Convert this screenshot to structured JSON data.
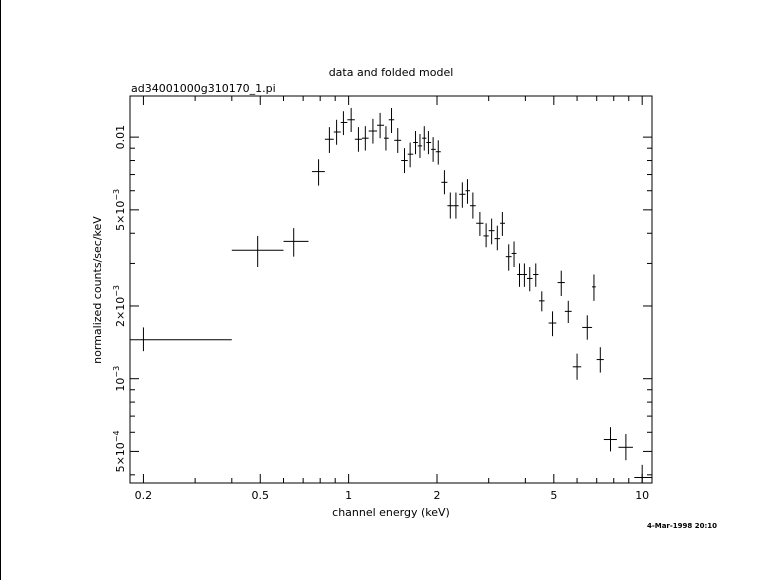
{
  "chart_data": {
    "type": "scatter",
    "title": "data and folded model",
    "subtitle": "ad34001000g310170_1.pi",
    "xlabel": "channel energy (keV)",
    "ylabel": "normalized counts/sec/keV",
    "timestamp": "4-Mar-1998 20:10",
    "xscale": "log",
    "yscale": "log",
    "xlim": [
      0.18,
      10.8
    ],
    "ylim": [
      0.00037,
      0.0148
    ],
    "grid": false,
    "legend": "none",
    "xticks": [
      {
        "value": 0.2,
        "label": "0.2"
      },
      {
        "value": 0.5,
        "label": "0.5"
      },
      {
        "value": 1,
        "label": "1"
      },
      {
        "value": 2,
        "label": "2"
      },
      {
        "value": 5,
        "label": "5"
      },
      {
        "value": 10,
        "label": "10"
      }
    ],
    "yticks": [
      {
        "value": 0.0005,
        "mantissa": "5×10",
        "exp": "−4"
      },
      {
        "value": 0.001,
        "mantissa": "10",
        "exp": "−3"
      },
      {
        "value": 0.002,
        "mantissa": "2×10",
        "exp": "−3"
      },
      {
        "value": 0.005,
        "mantissa": "5×10",
        "exp": "−3"
      },
      {
        "value": 0.01,
        "mantissa": "0.01",
        "exp": ""
      }
    ],
    "series": [
      {
        "points": [
          {
            "x": 0.2,
            "xlo": 0.18,
            "xhi": 0.4,
            "y": 0.00145,
            "ylo": 0.0013,
            "yhi": 0.00163
          },
          {
            "x": 0.49,
            "xlo": 0.4,
            "xhi": 0.6,
            "y": 0.0034,
            "ylo": 0.0029,
            "yhi": 0.0039
          },
          {
            "x": 0.65,
            "xlo": 0.6,
            "xhi": 0.73,
            "y": 0.0037,
            "ylo": 0.0032,
            "yhi": 0.0042
          },
          {
            "x": 0.79,
            "xlo": 0.75,
            "xhi": 0.83,
            "y": 0.0072,
            "ylo": 0.0063,
            "yhi": 0.0081
          },
          {
            "x": 0.86,
            "xlo": 0.83,
            "xhi": 0.89,
            "y": 0.0098,
            "ylo": 0.0086,
            "yhi": 0.011
          },
          {
            "x": 0.91,
            "xlo": 0.89,
            "xhi": 0.94,
            "y": 0.0105,
            "ylo": 0.0093,
            "yhi": 0.0118
          },
          {
            "x": 0.96,
            "xlo": 0.94,
            "xhi": 0.99,
            "y": 0.0115,
            "ylo": 0.0102,
            "yhi": 0.0128
          },
          {
            "x": 1.02,
            "xlo": 0.99,
            "xhi": 1.05,
            "y": 0.0118,
            "ylo": 0.0105,
            "yhi": 0.0132
          },
          {
            "x": 1.08,
            "xlo": 1.05,
            "xhi": 1.11,
            "y": 0.0098,
            "ylo": 0.0087,
            "yhi": 0.011
          },
          {
            "x": 1.14,
            "xlo": 1.11,
            "xhi": 1.17,
            "y": 0.0099,
            "ylo": 0.0088,
            "yhi": 0.0111
          },
          {
            "x": 1.21,
            "xlo": 1.17,
            "xhi": 1.25,
            "y": 0.0106,
            "ylo": 0.0094,
            "yhi": 0.0119
          },
          {
            "x": 1.28,
            "xlo": 1.25,
            "xhi": 1.32,
            "y": 0.0112,
            "ylo": 0.0099,
            "yhi": 0.0126
          },
          {
            "x": 1.34,
            "xlo": 1.32,
            "xhi": 1.37,
            "y": 0.0099,
            "ylo": 0.0088,
            "yhi": 0.0111
          },
          {
            "x": 1.4,
            "xlo": 1.37,
            "xhi": 1.43,
            "y": 0.0118,
            "ylo": 0.0104,
            "yhi": 0.0132
          },
          {
            "x": 1.47,
            "xlo": 1.43,
            "xhi": 1.51,
            "y": 0.0097,
            "ylo": 0.0086,
            "yhi": 0.0109
          },
          {
            "x": 1.55,
            "xlo": 1.51,
            "xhi": 1.59,
            "y": 0.008,
            "ylo": 0.0071,
            "yhi": 0.009
          },
          {
            "x": 1.62,
            "xlo": 1.59,
            "xhi": 1.66,
            "y": 0.0085,
            "ylo": 0.0075,
            "yhi": 0.0095
          },
          {
            "x": 1.69,
            "xlo": 1.66,
            "xhi": 1.72,
            "y": 0.0095,
            "ylo": 0.0085,
            "yhi": 0.0106
          },
          {
            "x": 1.75,
            "xlo": 1.72,
            "xhi": 1.78,
            "y": 0.0092,
            "ylo": 0.0082,
            "yhi": 0.0103
          },
          {
            "x": 1.81,
            "xlo": 1.78,
            "xhi": 1.84,
            "y": 0.0099,
            "ylo": 0.0088,
            "yhi": 0.0111
          },
          {
            "x": 1.87,
            "xlo": 1.84,
            "xhi": 1.91,
            "y": 0.0095,
            "ylo": 0.0085,
            "yhi": 0.0106
          },
          {
            "x": 1.94,
            "xlo": 1.91,
            "xhi": 1.98,
            "y": 0.0089,
            "ylo": 0.0079,
            "yhi": 0.01
          },
          {
            "x": 2.02,
            "xlo": 1.98,
            "xhi": 2.06,
            "y": 0.0087,
            "ylo": 0.0077,
            "yhi": 0.0097
          },
          {
            "x": 2.12,
            "xlo": 2.07,
            "xhi": 2.17,
            "y": 0.0065,
            "ylo": 0.0058,
            "yhi": 0.0073
          },
          {
            "x": 2.22,
            "xlo": 2.17,
            "xhi": 2.27,
            "y": 0.0052,
            "ylo": 0.0046,
            "yhi": 0.0059
          },
          {
            "x": 2.32,
            "xlo": 2.27,
            "xhi": 2.37,
            "y": 0.0052,
            "ylo": 0.0046,
            "yhi": 0.0059
          },
          {
            "x": 2.44,
            "xlo": 2.38,
            "xhi": 2.5,
            "y": 0.0058,
            "ylo": 0.0051,
            "yhi": 0.0065
          },
          {
            "x": 2.54,
            "xlo": 2.5,
            "xhi": 2.59,
            "y": 0.006,
            "ylo": 0.0053,
            "yhi": 0.0067
          },
          {
            "x": 2.65,
            "xlo": 2.59,
            "xhi": 2.71,
            "y": 0.0052,
            "ylo": 0.0046,
            "yhi": 0.0059
          },
          {
            "x": 2.8,
            "xlo": 2.72,
            "xhi": 2.88,
            "y": 0.0044,
            "ylo": 0.0039,
            "yhi": 0.0049
          },
          {
            "x": 2.94,
            "xlo": 2.88,
            "xhi": 3.0,
            "y": 0.0039,
            "ylo": 0.0035,
            "yhi": 0.0044
          },
          {
            "x": 3.07,
            "xlo": 3.0,
            "xhi": 3.14,
            "y": 0.0041,
            "ylo": 0.0036,
            "yhi": 0.0046
          },
          {
            "x": 3.21,
            "xlo": 3.14,
            "xhi": 3.28,
            "y": 0.0038,
            "ylo": 0.0034,
            "yhi": 0.0043
          },
          {
            "x": 3.34,
            "xlo": 3.28,
            "xhi": 3.41,
            "y": 0.0044,
            "ylo": 0.0039,
            "yhi": 0.0049
          },
          {
            "x": 3.51,
            "xlo": 3.43,
            "xhi": 3.59,
            "y": 0.0032,
            "ylo": 0.0028,
            "yhi": 0.0036
          },
          {
            "x": 3.66,
            "xlo": 3.59,
            "xhi": 3.73,
            "y": 0.0033,
            "ylo": 0.0029,
            "yhi": 0.0037
          },
          {
            "x": 3.82,
            "xlo": 3.75,
            "xhi": 3.9,
            "y": 0.0027,
            "ylo": 0.0024,
            "yhi": 0.003
          },
          {
            "x": 3.97,
            "xlo": 3.9,
            "xhi": 4.05,
            "y": 0.0027,
            "ylo": 0.0024,
            "yhi": 0.003
          },
          {
            "x": 4.14,
            "xlo": 4.05,
            "xhi": 4.23,
            "y": 0.0026,
            "ylo": 0.0023,
            "yhi": 0.0029
          },
          {
            "x": 4.34,
            "xlo": 4.25,
            "xhi": 4.43,
            "y": 0.0027,
            "ylo": 0.0024,
            "yhi": 0.003
          },
          {
            "x": 4.55,
            "xlo": 4.45,
            "xhi": 4.65,
            "y": 0.0021,
            "ylo": 0.0019,
            "yhi": 0.0023
          },
          {
            "x": 4.95,
            "xlo": 4.8,
            "xhi": 5.1,
            "y": 0.0017,
            "ylo": 0.0015,
            "yhi": 0.0019
          },
          {
            "x": 5.3,
            "xlo": 5.15,
            "xhi": 5.45,
            "y": 0.0025,
            "ylo": 0.0022,
            "yhi": 0.0028
          },
          {
            "x": 5.6,
            "xlo": 5.45,
            "xhi": 5.75,
            "y": 0.0019,
            "ylo": 0.0017,
            "yhi": 0.0021
          },
          {
            "x": 6.0,
            "xlo": 5.8,
            "xhi": 6.2,
            "y": 0.00112,
            "ylo": 0.00099,
            "yhi": 0.00127
          },
          {
            "x": 6.5,
            "xlo": 6.25,
            "xhi": 6.75,
            "y": 0.00163,
            "ylo": 0.00145,
            "yhi": 0.00183
          },
          {
            "x": 6.85,
            "xlo": 6.75,
            "xhi": 6.95,
            "y": 0.0024,
            "ylo": 0.0021,
            "yhi": 0.0027
          },
          {
            "x": 7.2,
            "xlo": 7.0,
            "xhi": 7.4,
            "y": 0.0012,
            "ylo": 0.00106,
            "yhi": 0.00135
          },
          {
            "x": 7.8,
            "xlo": 7.4,
            "xhi": 8.2,
            "y": 0.00056,
            "ylo": 0.0005,
            "yhi": 0.00063
          },
          {
            "x": 8.8,
            "xlo": 8.3,
            "xhi": 9.3,
            "y": 0.00052,
            "ylo": 0.00046,
            "yhi": 0.00059
          },
          {
            "x": 10.0,
            "xlo": 9.4,
            "xhi": 10.8,
            "y": 0.00039,
            "ylo": 0.00037,
            "yhi": 0.00044
          }
        ]
      }
    ]
  }
}
